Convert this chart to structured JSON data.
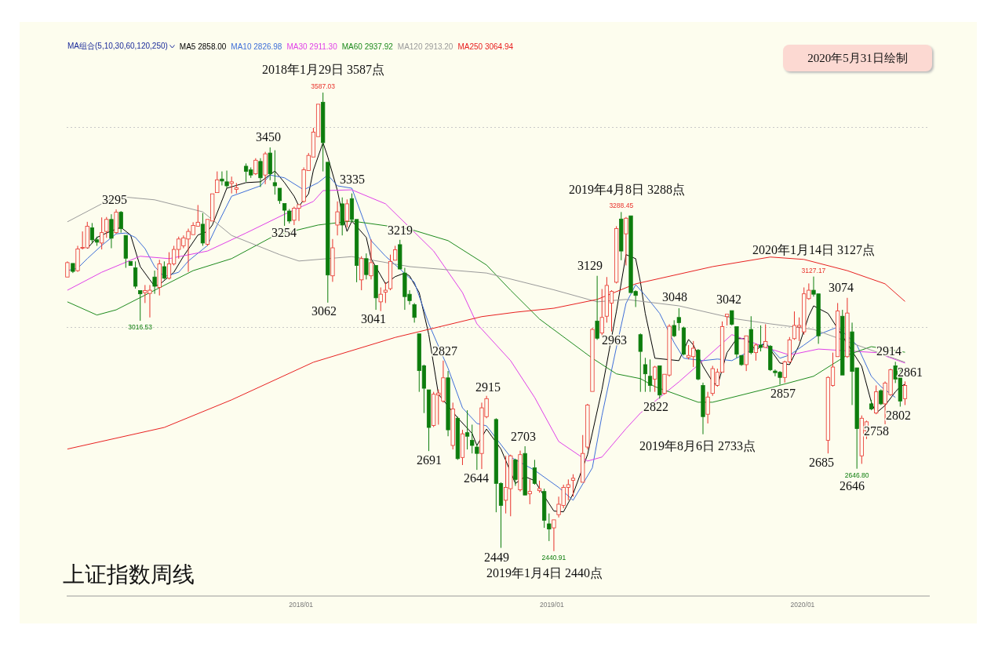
{
  "chart_data": {
    "type": "candlestick",
    "title": "上证指数周线",
    "subtitle": "2020年5月31日绘制",
    "legend_title": "MA组合(5,10,30,60,120,250)",
    "legend": "top left",
    "grid": "y",
    "tick_labels": "x",
    "xlim": [
      "2017-01-25",
      "2020-07-04"
    ],
    "xticks": [
      {
        "value": "2018-01",
        "label": "2018/01"
      },
      {
        "value": "2019-01",
        "label": "2019/01"
      },
      {
        "value": "2020-01",
        "label": "2020/01"
      }
    ],
    "yticks": [
      {
        "value": 3000,
        "label": null
      },
      {
        "value": 3500,
        "label": null
      }
    ],
    "x": [
      "2017-01-26",
      "2017-02-03",
      "2017-02-10",
      "2017-02-17",
      "2017-02-24",
      "2017-03-03",
      "2017-03-10",
      "2017-03-17",
      "2017-03-24",
      "2017-03-31",
      "2017-04-07",
      "2017-04-14",
      "2017-04-21",
      "2017-04-28",
      "2017-05-05",
      "2017-05-12",
      "2017-05-19",
      "2017-05-26",
      "2017-06-02",
      "2017-06-09",
      "2017-06-16",
      "2017-06-23",
      "2017-06-30",
      "2017-07-07",
      "2017-07-14",
      "2017-07-21",
      "2017-07-28",
      "2017-08-04",
      "2017-08-11",
      "2017-08-18",
      "2017-08-25",
      "2017-09-01",
      "2017-09-08",
      "2017-09-15",
      "2017-09-22",
      "2017-09-29",
      "2017-10-13",
      "2017-10-20",
      "2017-10-27",
      "2017-11-03",
      "2017-11-10",
      "2017-11-17",
      "2017-11-24",
      "2017-12-01",
      "2017-12-08",
      "2017-12-15",
      "2017-12-22",
      "2017-12-29",
      "2018-01-05",
      "2018-01-12",
      "2018-01-19",
      "2018-01-26",
      "2018-02-02",
      "2018-02-09",
      "2018-02-16",
      "2018-02-23",
      "2018-03-02",
      "2018-03-09",
      "2018-03-16",
      "2018-03-23",
      "2018-03-30",
      "2018-04-06",
      "2018-04-13",
      "2018-04-20",
      "2018-04-27",
      "2018-05-04",
      "2018-05-11",
      "2018-05-18",
      "2018-05-25",
      "2018-06-01",
      "2018-06-08",
      "2018-06-15",
      "2018-06-22",
      "2018-06-29",
      "2018-07-06",
      "2018-07-13",
      "2018-07-20",
      "2018-07-27",
      "2018-08-03",
      "2018-08-10",
      "2018-08-17",
      "2018-08-24",
      "2018-08-31",
      "2018-09-07",
      "2018-09-14",
      "2018-09-21",
      "2018-09-28",
      "2018-10-12",
      "2018-10-19",
      "2018-10-26",
      "2018-11-02",
      "2018-11-09",
      "2018-11-16",
      "2018-11-23",
      "2018-11-30",
      "2018-12-07",
      "2018-12-14",
      "2018-12-21",
      "2018-12-28",
      "2019-01-04",
      "2019-01-11",
      "2019-01-18",
      "2019-01-25",
      "2019-02-01",
      "2019-02-15",
      "2019-02-22",
      "2019-03-01",
      "2019-03-08",
      "2019-03-15",
      "2019-03-22",
      "2019-03-29",
      "2019-04-05",
      "2019-04-12",
      "2019-04-19",
      "2019-04-26",
      "2019-05-03",
      "2019-05-10",
      "2019-05-17",
      "2019-05-24",
      "2019-05-31",
      "2019-06-07",
      "2019-06-14",
      "2019-06-21",
      "2019-06-28",
      "2019-07-05",
      "2019-07-12",
      "2019-07-19",
      "2019-07-26",
      "2019-08-02",
      "2019-08-09",
      "2019-08-16",
      "2019-08-23",
      "2019-08-30",
      "2019-09-06",
      "2019-09-13",
      "2019-09-20",
      "2019-09-27",
      "2019-10-04",
      "2019-10-11",
      "2019-10-18",
      "2019-10-25",
      "2019-11-01",
      "2019-11-08",
      "2019-11-15",
      "2019-11-22",
      "2019-11-29",
      "2019-12-06",
      "2019-12-13",
      "2019-12-20",
      "2019-12-27",
      "2020-01-03",
      "2020-01-10",
      "2020-01-17",
      "2020-01-24",
      "2020-02-07",
      "2020-02-14",
      "2020-02-21",
      "2020-02-28",
      "2020-03-06",
      "2020-03-13",
      "2020-03-20",
      "2020-03-27",
      "2020-04-03",
      "2020-04-10",
      "2020-04-17",
      "2020-04-24",
      "2020-04-30",
      "2020-05-08",
      "2020-05-15",
      "2020-05-22",
      "2020-05-29"
    ],
    "ohlc": [
      [
        3126,
        3165,
        3125,
        3162
      ],
      [
        3160,
        3162,
        3136,
        3140
      ],
      [
        3142,
        3204,
        3139,
        3196
      ],
      [
        3198,
        3240,
        3195,
        3200
      ],
      [
        3199,
        3264,
        3197,
        3253
      ],
      [
        3249,
        3261,
        3210,
        3219
      ],
      [
        3219,
        3227,
        3204,
        3213
      ],
      [
        3211,
        3275,
        3195,
        3237
      ],
      [
        3240,
        3276,
        3224,
        3270
      ],
      [
        3270,
        3283,
        3198,
        3223
      ],
      [
        3237,
        3295,
        3234,
        3288
      ],
      [
        3288,
        3291,
        3237,
        3247
      ],
      [
        3230,
        3230,
        3149,
        3173
      ],
      [
        3165,
        3165,
        3155,
        3155
      ],
      [
        3149,
        3165,
        3097,
        3103
      ],
      [
        3092,
        3092,
        3016.53,
        3084
      ],
      [
        3087,
        3106,
        3061,
        3092
      ],
      [
        3085,
        3106,
        3025,
        3093
      ],
      [
        3126,
        3142,
        3084,
        3103
      ],
      [
        3100,
        3169,
        3080,
        3159
      ],
      [
        3152,
        3165,
        3120,
        3123
      ],
      [
        3123,
        3188,
        3120,
        3159
      ],
      [
        3159,
        3204,
        3155,
        3195
      ],
      [
        3195,
        3227,
        3172,
        3221
      ],
      [
        3204,
        3230,
        3198,
        3224
      ],
      [
        3221,
        3247,
        3139,
        3240
      ],
      [
        3232,
        3263,
        3231,
        3255
      ],
      [
        3253,
        3306,
        3253,
        3263
      ],
      [
        3258,
        3286,
        3204,
        3211
      ],
      [
        3208,
        3270,
        3204,
        3270
      ],
      [
        3266,
        3335,
        3264,
        3334
      ],
      [
        3337,
        3390,
        3335,
        3369
      ],
      [
        3371,
        3390,
        3355,
        3366
      ],
      [
        3364,
        3392,
        3348,
        3354
      ],
      [
        3360,
        3377,
        3335,
        3364
      ],
      [
        3345,
        3361,
        3335,
        3349
      ],
      [
        3403,
        3410,
        3364,
        3390
      ],
      [
        3394,
        3400,
        3374,
        3381
      ],
      [
        3384,
        3423,
        3381,
        3418
      ],
      [
        3415,
        3423,
        3351,
        3374
      ],
      [
        3381,
        3439,
        3358,
        3434
      ],
      [
        3436,
        3450,
        3368,
        3384
      ],
      [
        3362,
        3443,
        3332,
        3354
      ],
      [
        3348,
        3348,
        3309,
        3317
      ],
      [
        3310,
        3310,
        3254,
        3293
      ],
      [
        3291,
        3296,
        3260,
        3266
      ],
      [
        3268,
        3302,
        3256,
        3298
      ],
      [
        3298,
        3309,
        3266,
        3307
      ],
      [
        3315,
        3400,
        3312,
        3394
      ],
      [
        3392,
        3436,
        3390,
        3430
      ],
      [
        3426,
        3499,
        3426,
        3488
      ],
      [
        3477,
        3560,
        3475,
        3558
      ],
      [
        3563,
        3587.03,
        3390,
        3462
      ],
      [
        3413,
        3413,
        3062,
        3131
      ],
      [
        3129,
        3221,
        3114,
        3199
      ],
      [
        3256,
        3315,
        3230,
        3289
      ],
      [
        3309,
        3325,
        3230,
        3256
      ],
      [
        3266,
        3320,
        3250,
        3309
      ],
      [
        3322,
        3335,
        3263,
        3270
      ],
      [
        3270,
        3270,
        3113,
        3155
      ],
      [
        3119,
        3178,
        3093,
        3172
      ],
      [
        3172,
        3185,
        3120,
        3132
      ],
      [
        3129,
        3220,
        3120,
        3162
      ],
      [
        3155,
        3155,
        3044,
        3074
      ],
      [
        3064,
        3100,
        3041,
        3083
      ],
      [
        3088,
        3113,
        3061,
        3093
      ],
      [
        3097,
        3182,
        3093,
        3165
      ],
      [
        3168,
        3204,
        3168,
        3194
      ],
      [
        3207,
        3219,
        3146,
        3146
      ],
      [
        3136,
        3149,
        3044,
        3077
      ],
      [
        3083,
        3093,
        3057,
        3067
      ],
      [
        3057,
        3061,
        3012,
        3025
      ],
      [
        2984,
        2986,
        2839,
        2892
      ],
      [
        2904,
        2907,
        2786,
        2848
      ],
      [
        2844,
        2844,
        2691,
        2750
      ],
      [
        2755,
        2839,
        2751,
        2833
      ],
      [
        2831,
        2845,
        2757,
        2836
      ],
      [
        2816,
        2917,
        2812,
        2874
      ],
      [
        2874,
        2891,
        2728,
        2744
      ],
      [
        2705,
        2812,
        2695,
        2796
      ],
      [
        2773,
        2777,
        2669,
        2672
      ],
      [
        2675,
        2744,
        2656,
        2734
      ],
      [
        2737,
        2793,
        2695,
        2728
      ],
      [
        2718,
        2757,
        2685,
        2705
      ],
      [
        2701,
        2708,
        2644,
        2685
      ],
      [
        2685,
        2812,
        2646,
        2799
      ],
      [
        2777,
        2829,
        2773,
        2822
      ],
      [
        2770,
        2773,
        2538,
        2610
      ],
      [
        2610,
        2613,
        2449,
        2555
      ],
      [
        2568,
        2679,
        2535,
        2600
      ],
      [
        2597,
        2682,
        2528,
        2679
      ],
      [
        2669,
        2672,
        2604,
        2620
      ],
      [
        2594,
        2692,
        2590,
        2682
      ],
      [
        2685,
        2703,
        2581,
        2581
      ],
      [
        2584,
        2620,
        2558,
        2590
      ],
      [
        2649,
        2669,
        2607,
        2610
      ],
      [
        2592,
        2617,
        2587,
        2597
      ],
      [
        2590,
        2597,
        2499,
        2518
      ],
      [
        2509,
        2535,
        2466,
        2496
      ],
      [
        2499,
        2519,
        2440.91,
        2519
      ],
      [
        2532,
        2577,
        2525,
        2558
      ],
      [
        2555,
        2607,
        2548,
        2600
      ],
      [
        2600,
        2620,
        2568,
        2607
      ],
      [
        2618,
        2633,
        2577,
        2623
      ],
      [
        2613,
        2731,
        2613,
        2685
      ],
      [
        2701,
        2809,
        2695,
        2806
      ],
      [
        2840,
        2999,
        2839,
        2995
      ],
      [
        3016,
        3129,
        2969,
        2973
      ],
      [
        2986,
        3096,
        2976,
        3025
      ],
      [
        3028,
        3126,
        3012,
        3105
      ],
      [
        3061,
        3093,
        2990,
        3090
      ],
      [
        3113,
        3253,
        3110,
        3247
      ],
      [
        3271,
        3288.45,
        3168,
        3191
      ],
      [
        3234,
        3276,
        3155,
        3273
      ],
      [
        3279,
        3279,
        3087,
        3087
      ],
      [
        3090,
        3093,
        3051,
        3080
      ],
      [
        2982,
        2985,
        2839,
        2940
      ],
      [
        2907,
        2924,
        2839,
        2884
      ],
      [
        2878,
        2920,
        2839,
        2855
      ],
      [
        2871,
        2904,
        2839,
        2901
      ],
      [
        2904,
        2904,
        2822,
        2831
      ],
      [
        2835,
        2884,
        2832,
        2883
      ],
      [
        2881,
        3008,
        2877,
        3003
      ],
      [
        3005,
        3018,
        2976,
        2979
      ],
      [
        3025,
        3048,
        2992,
        3012
      ],
      [
        2999,
        3002,
        2930,
        2933
      ],
      [
        2925,
        2956,
        2920,
        2930
      ],
      [
        2927,
        2966,
        2901,
        2948
      ],
      [
        2943,
        2946,
        2868,
        2871
      ],
      [
        2855,
        2862,
        2733,
        2777
      ],
      [
        2783,
        2839,
        2760,
        2826
      ],
      [
        2835,
        2904,
        2829,
        2897
      ],
      [
        2855,
        2897,
        2852,
        2888
      ],
      [
        2888,
        3015,
        2888,
        3002
      ],
      [
        3027,
        3035,
        3005,
        3033
      ],
      [
        3042,
        3042,
        3005,
        3008
      ],
      [
        3002,
        3002,
        2924,
        2933
      ],
      [
        2930,
        2930,
        2904,
        2907
      ],
      [
        2907,
        2979,
        2891,
        2979
      ],
      [
        2995,
        3028,
        2933,
        2937
      ],
      [
        2937,
        2960,
        2917,
        2956
      ],
      [
        2956,
        3005,
        2940,
        2950
      ],
      [
        2950,
        3008,
        2950,
        2965
      ],
      [
        2953,
        2956,
        2891,
        2894
      ],
      [
        2891,
        2895,
        2878,
        2887
      ],
      [
        2888,
        2891,
        2857,
        2875
      ],
      [
        2875,
        2917,
        2862,
        2914
      ],
      [
        2914,
        2976,
        2911,
        2969
      ],
      [
        2972,
        3040,
        2969,
        3005
      ],
      [
        3001,
        3025,
        2966,
        3005
      ],
      [
        2989,
        3100,
        2982,
        3084
      ],
      [
        3072,
        3110,
        3069,
        3093
      ],
      [
        3093,
        3127.17,
        3077,
        3083
      ],
      [
        3084,
        3084,
        2959,
        2979
      ],
      [
        2718,
        2878,
        2685,
        2875
      ],
      [
        2855,
        2937,
        2852,
        2901
      ],
      [
        2927,
        3061,
        2927,
        3041
      ],
      [
        3028,
        3044,
        2881,
        2881
      ],
      [
        2927,
        3074,
        2924,
        3036
      ],
      [
        2989,
        3012,
        2806,
        2890
      ],
      [
        2899,
        2899,
        2646.8,
        2747
      ],
      [
        2679,
        2780,
        2659,
        2773
      ],
      [
        2741,
        2767,
        2721,
        2764
      ],
      [
        2809,
        2819,
        2793,
        2796
      ],
      [
        2786,
        2855,
        2783,
        2839
      ],
      [
        2842,
        2845,
        2806,
        2809
      ],
      [
        2809,
        2865,
        2758,
        2861
      ],
      [
        2832,
        2897,
        2829,
        2894
      ],
      [
        2904,
        2914,
        2861,
        2871
      ],
      [
        2875,
        2901,
        2802,
        2816
      ],
      [
        2822,
        2865,
        2806,
        2855
      ]
    ],
    "colors": [
      "#e8302a",
      "#0d7d0d",
      "#e8302a",
      "#e8302a",
      "#e8302a",
      "#0d7d0d",
      "#0d7d0d",
      "#e8302a",
      "#e8302a",
      "#0d7d0d",
      "#e8302a",
      "#0d7d0d",
      "#0d7d0d",
      "#0d7d0d",
      "#0d7d0d",
      "#0d7d0d",
      "#e8302a",
      "#e8302a",
      "#0d7d0d",
      "#e8302a",
      "#0d7d0d",
      "#e8302a",
      "#e8302a",
      "#e8302a",
      "#e8302a",
      "#e8302a",
      "#e8302a",
      "#e8302a",
      "#0d7d0d",
      "#e8302a",
      "#e8302a",
      "#e8302a",
      "#0d7d0d",
      "#0d7d0d",
      "#e8302a",
      "#e8302a",
      "#0d7d0d",
      "#0d7d0d",
      "#e8302a",
      "#0d7d0d",
      "#e8302a",
      "#0d7d0d",
      "#0d7d0d",
      "#0d7d0d",
      "#0d7d0d",
      "#0d7d0d",
      "#e8302a",
      "#e8302a",
      "#e8302a",
      "#e8302a",
      "#e8302a",
      "#e8302a",
      "#0d7d0d",
      "#0d7d0d",
      "#e8302a",
      "#e8302a",
      "#0d7d0d",
      "#e8302a",
      "#0d7d0d",
      "#0d7d0d",
      "#e8302a",
      "#0d7d0d",
      "#e8302a",
      "#0d7d0d",
      "#e8302a",
      "#e8302a",
      "#e8302a",
      "#e8302a",
      "#0d7d0d",
      "#0d7d0d",
      "#0d7d0d",
      "#0d7d0d",
      "#0d7d0d",
      "#0d7d0d",
      "#0d7d0d",
      "#e8302a",
      "#e8302a",
      "#e8302a",
      "#0d7d0d",
      "#e8302a",
      "#0d7d0d",
      "#e8302a",
      "#0d7d0d",
      "#0d7d0d",
      "#0d7d0d",
      "#e8302a",
      "#e8302a",
      "#0d7d0d",
      "#0d7d0d",
      "#e8302a",
      "#e8302a",
      "#0d7d0d",
      "#e8302a",
      "#0d7d0d",
      "#e8302a",
      "#0d7d0d",
      "#e8302a",
      "#0d7d0d",
      "#0d7d0d",
      "#e8302a",
      "#e8302a",
      "#e8302a",
      "#e8302a",
      "#e8302a",
      "#e8302a",
      "#e8302a",
      "#e8302a",
      "#0d7d0d",
      "#e8302a",
      "#e8302a",
      "#e8302a",
      "#e8302a",
      "#0d7d0d",
      "#e8302a",
      "#0d7d0d",
      "#0d7d0d",
      "#0d7d0d",
      "#0d7d0d",
      "#0d7d0d",
      "#e8302a",
      "#0d7d0d",
      "#e8302a",
      "#e8302a",
      "#0d7d0d",
      "#0d7d0d",
      "#0d7d0d",
      "#e8302a",
      "#e8302a",
      "#0d7d0d",
      "#0d7d0d",
      "#e8302a",
      "#e8302a",
      "#e8302a",
      "#e8302a",
      "#e8302a",
      "#0d7d0d",
      "#0d7d0d",
      "#0d7d0d",
      "#e8302a",
      "#0d7d0d",
      "#e8302a",
      "#0d7d0d",
      "#e8302a",
      "#0d7d0d",
      "#0d7d0d",
      "#0d7d0d",
      "#e8302a",
      "#e8302a",
      "#e8302a",
      "#e8302a",
      "#e8302a",
      "#e8302a",
      "#0d7d0d",
      "#0d7d0d",
      "#e8302a",
      "#e8302a",
      "#e8302a",
      "#0d7d0d",
      "#e8302a",
      "#0d7d0d",
      "#0d7d0d",
      "#e8302a",
      "#e8302a",
      "#0d7d0d",
      "#e8302a",
      "#0d7d0d",
      "#e8302a",
      "#e8302a",
      "#0d7d0d",
      "#0d7d0d",
      "#e8302a"
    ],
    "value_labels": [
      null,
      null,
      null,
      null,
      null,
      null,
      null,
      null,
      null,
      null,
      null,
      null,
      null,
      null,
      null,
      "3016.53",
      null,
      null,
      null,
      null,
      null,
      null,
      null,
      null,
      null,
      null,
      null,
      null,
      null,
      null,
      null,
      null,
      null,
      null,
      null,
      null,
      null,
      null,
      null,
      null,
      null,
      null,
      null,
      null,
      null,
      null,
      null,
      null,
      null,
      null,
      null,
      null,
      "3587.03",
      null,
      null,
      null,
      null,
      null,
      null,
      null,
      null,
      null,
      null,
      null,
      null,
      null,
      null,
      null,
      null,
      null,
      null,
      null,
      null,
      null,
      null,
      null,
      null,
      null,
      null,
      null,
      null,
      null,
      null,
      null,
      null,
      null,
      null,
      null,
      null,
      null,
      null,
      null,
      null,
      null,
      null,
      null,
      null,
      null,
      null,
      "2440.91",
      null,
      null,
      null,
      null,
      null,
      null,
      null,
      null,
      null,
      null,
      null,
      null,
      "3288.45",
      null,
      null,
      null,
      null,
      null,
      null,
      null,
      null,
      null,
      null,
      null,
      null,
      null,
      null,
      null,
      null,
      null,
      null,
      null,
      null,
      null,
      null,
      null,
      null,
      null,
      null,
      null,
      null,
      null,
      null,
      null,
      null,
      null,
      null,
      null,
      null,
      null,
      null,
      null,
      "3127.17",
      null,
      null,
      null,
      null,
      null,
      null,
      null,
      "2646.80",
      null,
      null,
      null,
      null,
      null,
      null,
      null,
      null,
      null,
      null
    ],
    "series": [
      {
        "type": "line",
        "name": "MA5 2858.00",
        "color": "#000000",
        "x": [
          "2017-02-24",
          "2017-03-10",
          "2017-03-24",
          "2017-04-07",
          "2017-04-14",
          "2017-04-28",
          "2017-05-12",
          "2017-05-26",
          "2017-06-02",
          "2017-06-09",
          "2017-06-30",
          "2017-07-14",
          "2017-08-04",
          "2017-08-18",
          "2017-08-25",
          "2017-09-15",
          "2017-10-13",
          "2017-11-03",
          "2017-11-24",
          "2017-12-08",
          "2017-12-22",
          "2017-12-29",
          "2018-01-12",
          "2018-01-19",
          "2018-02-02",
          "2018-02-09",
          "2018-02-23",
          "2018-03-02",
          "2018-03-09",
          "2018-03-16",
          "2018-04-06",
          "2018-04-13",
          "2018-05-04",
          "2018-05-18",
          "2018-06-01",
          "2018-06-08",
          "2018-06-22",
          "2018-07-06",
          "2018-07-20",
          "2018-08-17",
          "2018-09-07",
          "2018-09-14",
          "2018-09-28",
          "2018-10-19",
          "2018-11-09",
          "2018-11-23",
          "2018-12-07",
          "2018-12-21",
          "2019-01-04",
          "2019-01-18",
          "2019-02-01",
          "2019-02-22",
          "2019-03-15",
          "2019-04-05",
          "2019-04-19",
          "2019-05-03",
          "2019-05-10",
          "2019-05-17",
          "2019-05-31",
          "2019-07-05",
          "2019-07-19",
          "2019-07-26",
          "2019-08-09",
          "2019-08-23",
          "2019-08-30",
          "2019-09-13",
          "2019-09-27",
          "2019-10-11",
          "2019-10-25",
          "2019-11-08",
          "2019-11-29",
          "2019-12-13",
          "2019-12-27",
          "2020-01-10",
          "2020-01-17",
          "2020-02-07",
          "2020-03-27",
          "2020-04-10",
          "2020-04-17",
          "2020-04-30",
          "2020-05-15",
          "2020-05-22",
          "2020-05-29"
        ],
        "values": [
          3197,
          3225,
          3236,
          3246,
          3250,
          3231,
          3152,
          3119,
          3103,
          3107,
          3138,
          3178,
          3231,
          3240,
          3256,
          3348,
          3362,
          3364,
          3391,
          3362,
          3328,
          3303,
          3334,
          3393,
          3462,
          3426,
          3342,
          3283,
          3240,
          3266,
          3225,
          3172,
          3109,
          3127,
          3136,
          3129,
          3087,
          2982,
          2833,
          2774,
          2735,
          2705,
          2746,
          2696,
          2610,
          2627,
          2617,
          2578,
          2541,
          2539,
          2584,
          2682,
          2845,
          3040,
          3182,
          3172,
          3113,
          3035,
          2923,
          2917,
          2970,
          2956,
          2903,
          2864,
          2854,
          2937,
          2972,
          2972,
          2943,
          2962,
          2911,
          2907,
          2956,
          3029,
          3054,
          3035,
          2903,
          2813,
          2786,
          2805,
          2839,
          2852,
          2858
        ]
      },
      {
        "type": "line",
        "name": "MA10 2826.98",
        "color": "#3f6fd8",
        "x": [
          "2017-01-26",
          "2017-02-10",
          "2017-02-24",
          "2017-03-17",
          "2017-04-07",
          "2017-04-21",
          "2017-05-05",
          "2017-05-19",
          "2017-06-02",
          "2017-06-16",
          "2017-07-07",
          "2017-07-21",
          "2017-08-18",
          "2017-09-01",
          "2017-09-22",
          "2017-11-03",
          "2017-11-17",
          "2017-12-08",
          "2018-01-05",
          "2018-01-26",
          "2018-02-09",
          "2018-02-23",
          "2018-03-16",
          "2018-04-13",
          "2018-05-04",
          "2018-05-25",
          "2018-06-15",
          "2018-07-06",
          "2018-08-03",
          "2018-08-24",
          "2018-09-14",
          "2018-09-28",
          "2018-11-02",
          "2018-12-07",
          "2019-01-11",
          "2019-02-01",
          "2019-03-01",
          "2019-03-15",
          "2019-04-05",
          "2019-04-19",
          "2019-05-03",
          "2019-05-17",
          "2019-06-07",
          "2019-06-28",
          "2019-07-12",
          "2019-08-09",
          "2019-08-30",
          "2019-09-20",
          "2019-11-08",
          "2019-11-29",
          "2019-12-13",
          "2020-01-03",
          "2020-01-24",
          "2020-02-21",
          "2020-03-20",
          "2020-04-10",
          "2020-04-24",
          "2020-05-15"
        ],
        "values": [
          3142,
          3148,
          3172,
          3205,
          3234,
          3236,
          3225,
          3197,
          3152,
          3127,
          3138,
          3166,
          3205,
          3256,
          3328,
          3354,
          3381,
          3374,
          3344,
          3362,
          3381,
          3354,
          3348,
          3217,
          3178,
          3146,
          3113,
          3009,
          2898,
          2799,
          2760,
          2754,
          2676,
          2643,
          2600,
          2568,
          2649,
          2780,
          2950,
          3060,
          3107,
          3080,
          3035,
          2962,
          2923,
          2917,
          2921,
          2917,
          2962,
          2923,
          2931,
          2956,
          2982,
          3001,
          2956,
          2878,
          2852,
          2825
        ]
      },
      {
        "type": "line",
        "name": "MA30 2911.30",
        "color": "#e040e8",
        "x": [
          "2017-01-26",
          "2017-03-17",
          "2017-05-12",
          "2017-06-23",
          "2017-08-18",
          "2017-10-13",
          "2017-12-08",
          "2018-01-19",
          "2018-02-02",
          "2018-03-16",
          "2018-05-04",
          "2018-06-08",
          "2018-07-13",
          "2018-08-24",
          "2018-09-14",
          "2018-11-02",
          "2018-12-07",
          "2019-01-11",
          "2019-02-22",
          "2019-03-15",
          "2019-04-19",
          "2019-05-10",
          "2019-07-05",
          "2019-08-09",
          "2019-09-20",
          "2019-11-08",
          "2019-12-13",
          "2020-01-24",
          "2020-04-17",
          "2020-05-29"
        ],
        "values": [
          3093,
          3138,
          3178,
          3172,
          3191,
          3236,
          3283,
          3315,
          3342,
          3344,
          3309,
          3250,
          3191,
          3087,
          3009,
          2917,
          2825,
          2715,
          2666,
          2676,
          2747,
          2786,
          2864,
          2917,
          2982,
          2950,
          2931,
          2946,
          2937,
          2911
        ]
      },
      {
        "type": "line",
        "name": "MA60 2937.92",
        "color": "#1d8a1d",
        "x": [
          "2017-01-26",
          "2017-03-10",
          "2017-04-07",
          "2017-06-02",
          "2017-07-28",
          "2017-09-22",
          "2017-11-24",
          "2018-01-26",
          "2018-03-16",
          "2018-06-08",
          "2018-08-03",
          "2018-09-28",
          "2018-11-02",
          "2018-12-14",
          "2019-03-01",
          "2019-04-05",
          "2019-05-10",
          "2019-05-31",
          "2019-08-02",
          "2019-08-23",
          "2019-11-15",
          "2020-01-17",
          "2020-03-06",
          "2020-04-10",
          "2020-05-29"
        ],
        "values": [
          3064,
          3031,
          3044,
          3093,
          3142,
          3172,
          3230,
          3256,
          3266,
          3246,
          3217,
          3156,
          3093,
          3021,
          2923,
          2884,
          2872,
          2852,
          2813,
          2813,
          2849,
          2878,
          2931,
          2952,
          2938
        ]
      },
      {
        "type": "line",
        "name": "MA120 2913.20",
        "color": "#9a9a9a",
        "x": [
          "2017-01-26",
          "2017-04-07",
          "2017-06-02",
          "2017-08-11",
          "2017-09-22",
          "2017-12-01",
          "2017-12-29",
          "2018-03-16",
          "2018-06-08",
          "2018-09-28",
          "2019-01-04",
          "2019-03-08",
          "2019-04-19",
          "2019-07-05",
          "2019-09-27",
          "2019-11-15",
          "2020-01-17",
          "2020-05-29"
        ],
        "values": [
          3264,
          3328,
          3319,
          3289,
          3230,
          3182,
          3166,
          3177,
          3152,
          3136,
          3094,
          3064,
          3070,
          3054,
          3021,
          3009,
          2995,
          2913
        ]
      },
      {
        "type": "line",
        "name": "MA250 3064.94",
        "color": "#e82020",
        "x": [
          "2017-01-26",
          "2017-06-16",
          "2017-09-22",
          "2018-01-19",
          "2018-05-18",
          "2018-09-21",
          "2018-11-09",
          "2019-01-04",
          "2019-03-08",
          "2019-05-03",
          "2019-08-23",
          "2019-11-15",
          "2020-01-03",
          "2020-03-06",
          "2020-04-30",
          "2020-05-29"
        ],
        "values": [
          2696,
          2750,
          2819,
          2913,
          2975,
          3027,
          3038,
          3048,
          3070,
          3109,
          3152,
          3176,
          3170,
          3142,
          3109,
          3065
        ]
      }
    ],
    "annotations": [
      "2018年1月29日 3587点",
      "3295",
      "3450",
      "3335",
      "3254",
      "3062",
      "3041",
      "3219",
      "2827",
      "2691",
      "2915",
      "2644",
      "2703",
      "2449",
      "2019年1月4日 2440点",
      "2019年4月8日 3288点",
      "3129",
      "2963",
      "3048",
      "2822",
      "2019年8月6日 2733点",
      "3042",
      "2857",
      "2020年1月14日 3127点",
      "3074",
      "2914",
      "2861",
      "2802",
      "2758",
      "2685",
      "2646"
    ]
  }
}
